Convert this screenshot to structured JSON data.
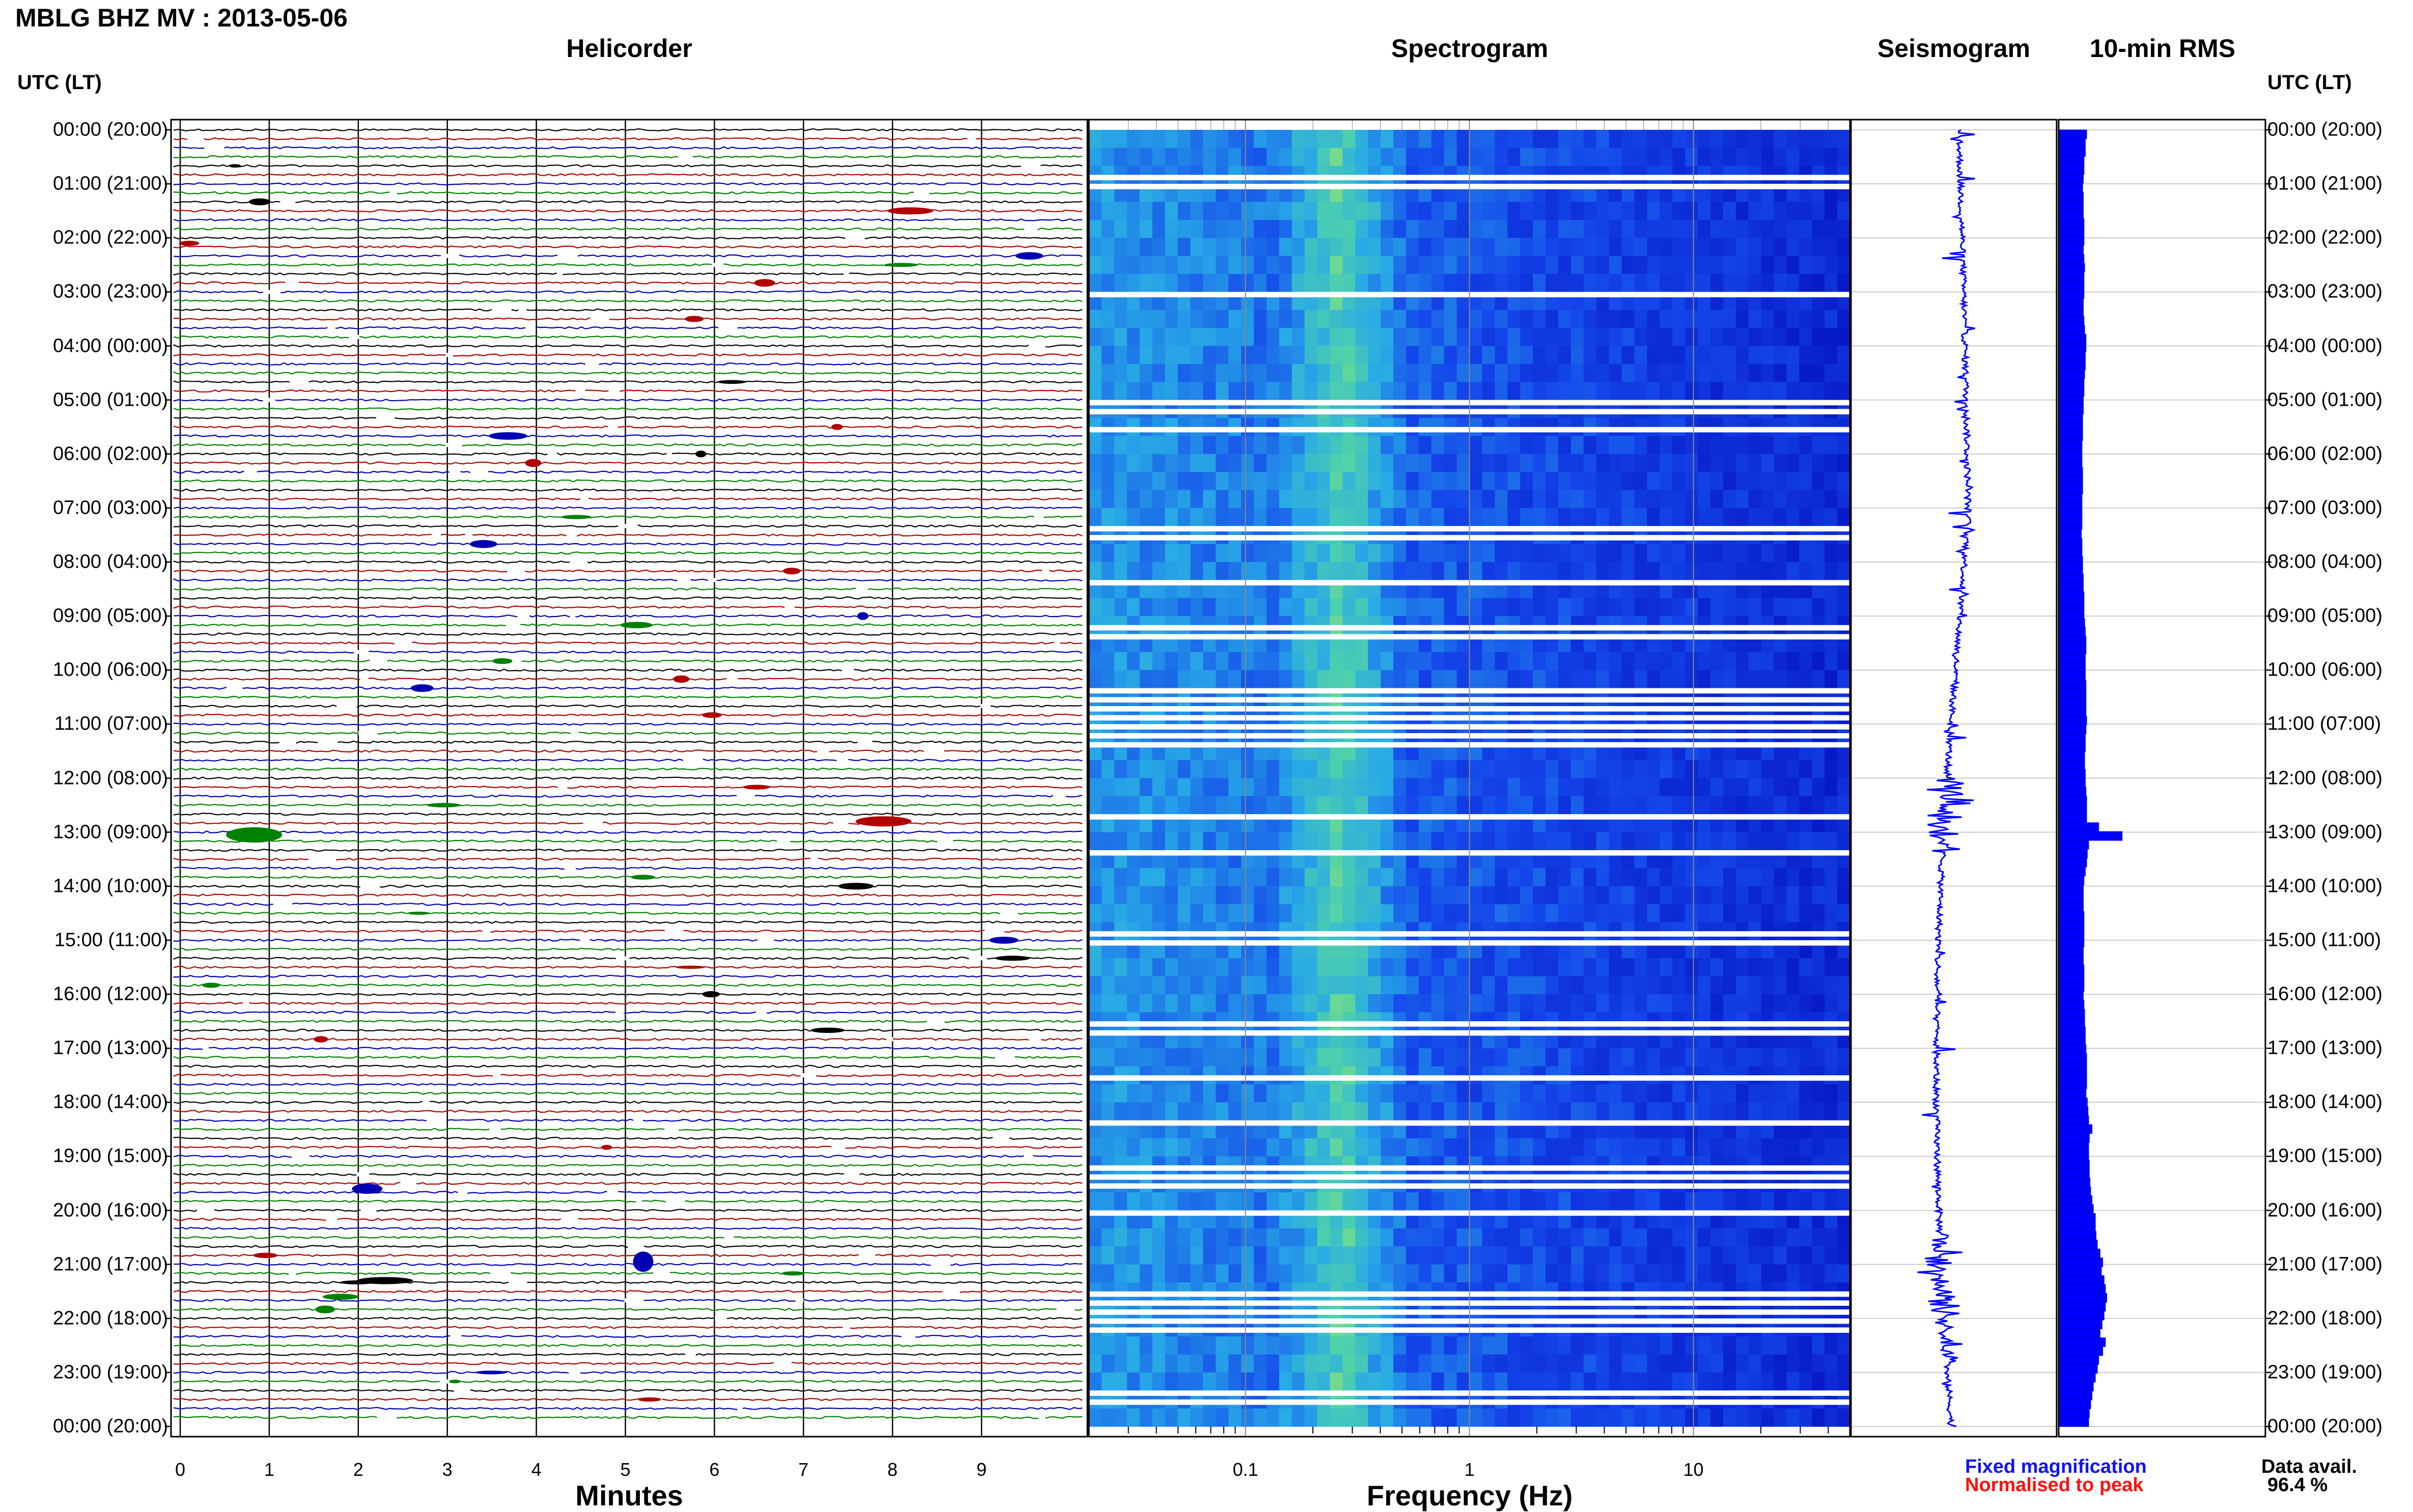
{
  "title": "MBLG BHZ MV : 2013-05-06",
  "panels": {
    "helicorder": "Helicorder",
    "spectrogram": "Spectrogram",
    "seismogram": "Seismogram",
    "rms": "10-min RMS"
  },
  "timezone_label_left": "UTC (LT)",
  "timezone_label_right": "UTC (LT)",
  "time_labels": [
    "00:00 (20:00)",
    "01:00 (21:00)",
    "02:00 (22:00)",
    "03:00 (23:00)",
    "04:00 (00:00)",
    "05:00 (01:00)",
    "06:00 (02:00)",
    "07:00 (03:00)",
    "08:00 (04:00)",
    "09:00 (05:00)",
    "10:00 (06:00)",
    "11:00 (07:00)",
    "12:00 (08:00)",
    "13:00 (09:00)",
    "14:00 (10:00)",
    "15:00 (11:00)",
    "16:00 (12:00)",
    "17:00 (13:00)",
    "18:00 (14:00)",
    "19:00 (15:00)",
    "20:00 (16:00)",
    "21:00 (17:00)",
    "22:00 (18:00)",
    "23:00 (19:00)",
    "00:00 (20:00)"
  ],
  "x_axes": {
    "minutes_label": "Minutes",
    "minutes_ticks": [
      "0",
      "1",
      "2",
      "3",
      "4",
      "5",
      "6",
      "7",
      "8",
      "9"
    ],
    "frequency_label": "Frequency (Hz)",
    "frequency_ticks": [
      "0.1",
      "1",
      "10"
    ]
  },
  "legend": {
    "fixed": "Fixed magnification",
    "normalised": "Normalised to peak",
    "fixed_color": "#1010ff",
    "normalised_color": "#ff1010"
  },
  "data_availability": {
    "label": "Data avail.",
    "value": "96.4 %"
  },
  "colors": {
    "trace_cycle": [
      "#000000",
      "#b00000",
      "#0000b0",
      "#008000"
    ],
    "spectrogram_low": "#0000c8",
    "spectrogram_high": "#ffff00",
    "seismogram": "#0000ff",
    "rms_bar": "#0000ff"
  },
  "chart_data": {
    "type": "heatmap",
    "helicorder": {
      "rows_per_hour": 6,
      "hours": 24,
      "minutes_per_row": 10,
      "y_scale": "time"
    },
    "spectrogram": {
      "x_scale": "log",
      "x_range_hz": [
        0.02,
        50
      ]
    },
    "seismogram": {
      "units": "relative"
    },
    "rms_10min": {
      "bin_minutes": 10,
      "values": [
        0.42,
        0.4,
        0.4,
        0.38,
        0.38,
        0.37,
        0.36,
        0.37,
        0.37,
        0.37,
        0.38,
        0.38,
        0.38,
        0.37,
        0.38,
        0.39,
        0.38,
        0.38,
        0.38,
        0.37,
        0.37,
        0.38,
        0.39,
        0.41,
        0.41,
        0.4,
        0.4,
        0.39,
        0.38,
        0.38,
        0.37,
        0.37,
        0.36,
        0.36,
        0.36,
        0.35,
        0.35,
        0.35,
        0.36,
        0.36,
        0.36,
        0.35,
        0.35,
        0.35,
        0.35,
        0.34,
        0.35,
        0.35,
        0.36,
        0.36,
        0.37,
        0.37,
        0.38,
        0.38,
        0.38,
        0.39,
        0.4,
        0.41,
        0.41,
        0.4,
        0.4,
        0.4,
        0.41,
        0.41,
        0.41,
        0.41,
        0.42,
        0.41,
        0.4,
        0.4,
        0.39,
        0.39,
        0.4,
        0.4,
        0.41,
        0.42,
        0.42,
        0.42,
        0.6,
        0.95,
        0.45,
        0.43,
        0.42,
        0.4,
        0.38,
        0.37,
        0.37,
        0.37,
        0.38,
        0.38,
        0.38,
        0.38,
        0.37,
        0.37,
        0.38,
        0.38,
        0.38,
        0.37,
        0.38,
        0.39,
        0.39,
        0.4,
        0.4,
        0.41,
        0.42,
        0.42,
        0.42,
        0.42,
        0.41,
        0.43,
        0.44,
        0.45,
        0.5,
        0.46,
        0.45,
        0.45,
        0.46,
        0.46,
        0.47,
        0.48,
        0.5,
        0.52,
        0.55,
        0.55,
        0.56,
        0.58,
        0.62,
        0.66,
        0.64,
        0.68,
        0.7,
        0.72,
        0.7,
        0.68,
        0.65,
        0.62,
        0.7,
        0.66,
        0.6,
        0.58,
        0.55,
        0.52,
        0.5,
        0.48,
        0.46,
        0.45
      ]
    }
  }
}
